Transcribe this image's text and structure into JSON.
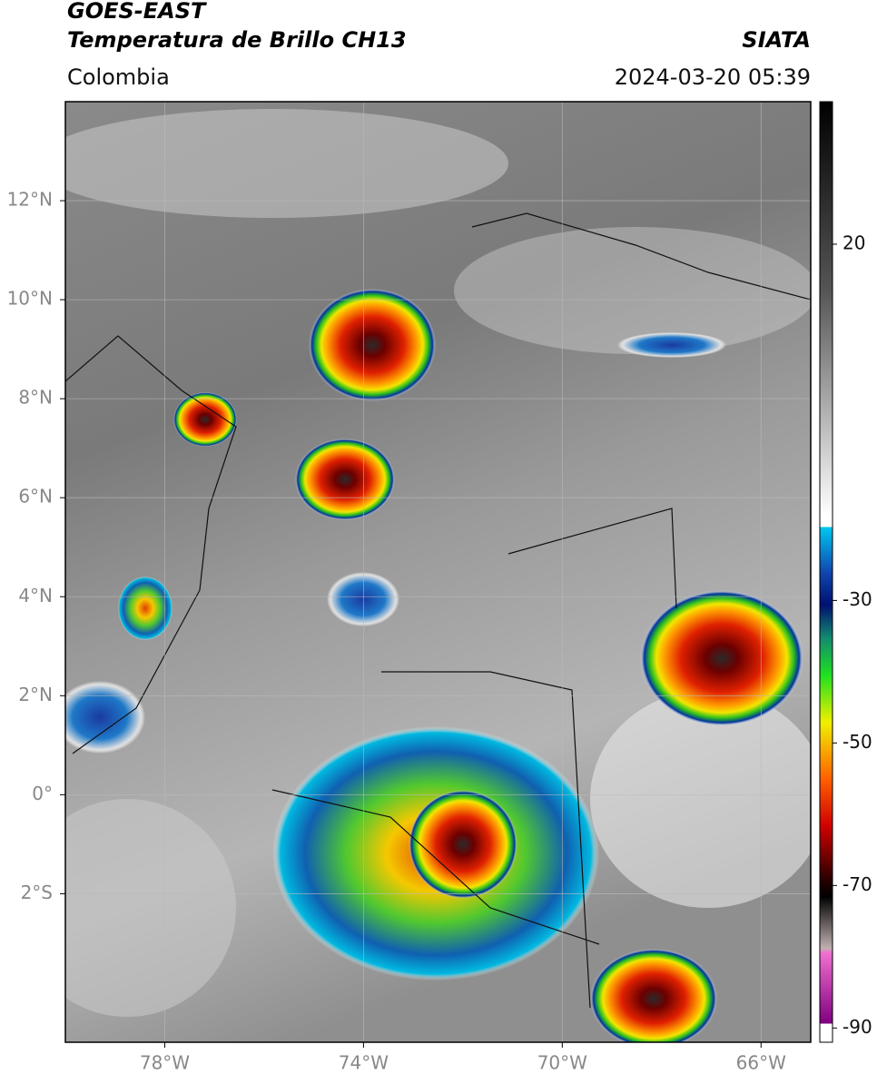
{
  "header": {
    "satellite": "GOES-EAST",
    "product": "Temperatura de Brillo CH13",
    "region": "Colombia",
    "source": "SIATA",
    "timestamp": "2024-03-20 05:39"
  },
  "map": {
    "lat_range": [
      -5,
      14
    ],
    "lon_range": [
      -80,
      -65
    ],
    "grid": true,
    "lat_ticks": [
      {
        "value": 12,
        "label": "12°N"
      },
      {
        "value": 10,
        "label": "10°N"
      },
      {
        "value": 8,
        "label": "8°N"
      },
      {
        "value": 6,
        "label": "6°N"
      },
      {
        "value": 4,
        "label": "4°N"
      },
      {
        "value": 2,
        "label": "2°N"
      },
      {
        "value": 0,
        "label": "0°"
      },
      {
        "value": -2,
        "label": "2°S"
      }
    ],
    "lon_ticks": [
      {
        "value": -78,
        "label": "78°W"
      },
      {
        "value": -74,
        "label": "74°W"
      },
      {
        "value": -70,
        "label": "70°W"
      },
      {
        "value": -66,
        "label": "66°W"
      }
    ]
  },
  "colorbar": {
    "range": [
      -92,
      40
    ],
    "ticks": [
      20,
      -30,
      -50,
      -70,
      -90
    ]
  }
}
